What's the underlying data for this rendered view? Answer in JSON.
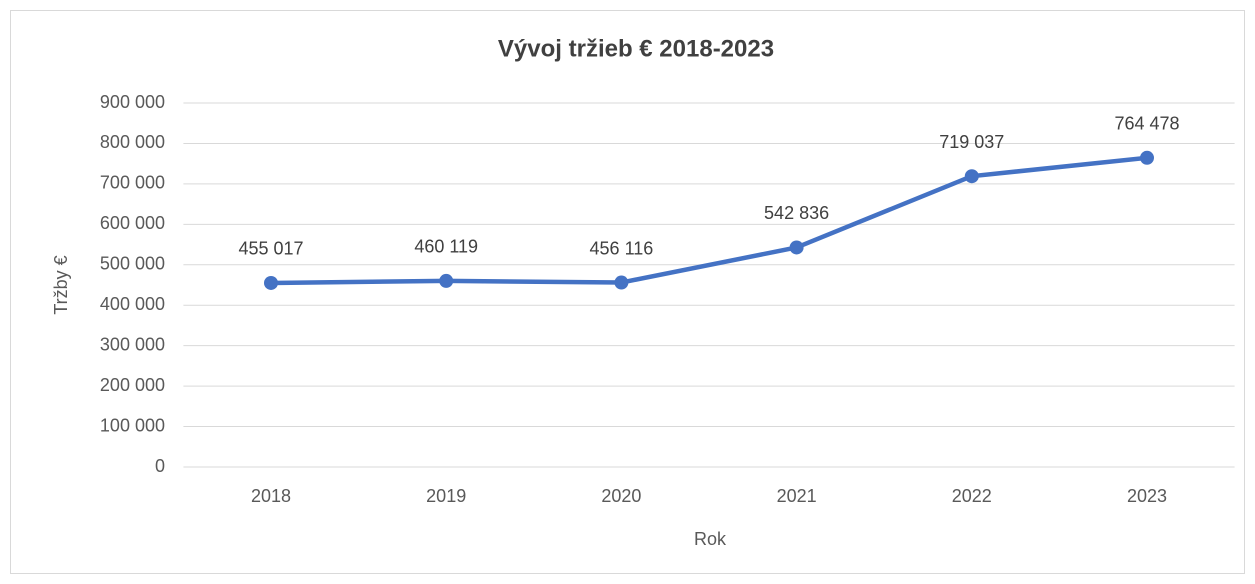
{
  "chart_data": {
    "type": "line",
    "title": "Vývoj tržieb € 2018-2023",
    "x_label": "Rok",
    "y_label": "Tržby €",
    "categories": [
      "2018",
      "2019",
      "2020",
      "2021",
      "2022",
      "2023"
    ],
    "series": [
      {
        "name": "Tržby",
        "color": "#4472c4",
        "values": [
          455017,
          460119,
          456116,
          542836,
          719037,
          764478
        ],
        "value_labels": [
          "455 017",
          "460 119",
          "456 116",
          "542 836",
          "719 037",
          "764 478"
        ]
      }
    ],
    "ylim": [
      0,
      900000
    ],
    "yticks": [
      0,
      {
        "value": 100000,
        "label": "100 000"
      },
      {
        "value": 200000,
        "label": "200 000"
      },
      {
        "value": 300000,
        "label": "300 000"
      },
      {
        "value": 400000,
        "label": "400 000"
      },
      {
        "value": 500000,
        "label": "500 000"
      },
      {
        "value": 600000,
        "label": "600 000"
      },
      {
        "value": 700000,
        "label": "700 000"
      },
      {
        "value": 800000,
        "label": "800 000"
      },
      {
        "value": 900000,
        "label": "900 000"
      }
    ],
    "grid": true
  }
}
